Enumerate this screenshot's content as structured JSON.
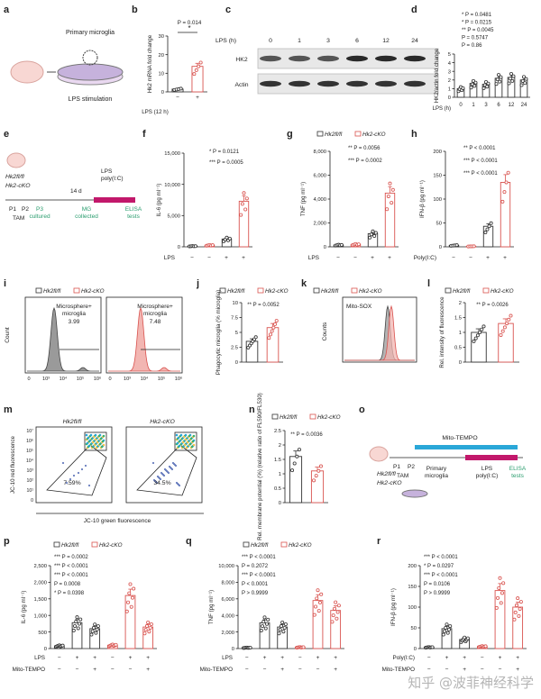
{
  "colors": {
    "wt": "#333333",
    "ko": "#d9534f",
    "ko_fill": "#f2b6b2",
    "green": "#2a9d6e",
    "magenta": "#c2186b",
    "cyan": "#2aa7d8",
    "gray_fill": "#9a9a9a"
  },
  "panel_letters": [
    "a",
    "b",
    "c",
    "d",
    "e",
    "f",
    "g",
    "h",
    "i",
    "j",
    "k",
    "l",
    "m",
    "n",
    "o",
    "p",
    "q",
    "r"
  ],
  "a": {
    "title": "Primary microglia",
    "caption": "LPS stimulation"
  },
  "b": {
    "p": "P = 0.014",
    "star": "*"
  },
  "c": {
    "lps": "LPS (h)",
    "times": [
      "0",
      "1",
      "3",
      "6",
      "12",
      "24"
    ],
    "bands": [
      "HK2",
      "Actin"
    ]
  },
  "d": {
    "p_rows": [
      "* P = 0.0481",
      "* P = 0.0215",
      "** P = 0.0045",
      "P = 0.5747",
      "P = 0.86"
    ]
  },
  "e": {
    "genotypes_top": "Hk2fl/fl",
    "genotypes_bottom": "Hk2-cKO",
    "ticks": [
      "P1",
      "P2"
    ],
    "tam": "TAM",
    "gap": "14 d",
    "lps": "LPS",
    "polyic": "poly(I:C)",
    "steps": [
      "P3 cultured",
      "MG collected",
      "ELISA tests"
    ]
  },
  "f": {
    "p": [
      "* P = 0.0121",
      "*** P = 0.0005"
    ]
  },
  "g": {
    "legend": [
      "Hk2fl/fl",
      "Hk2-cKO"
    ],
    "p": [
      "** P = 0.0056",
      "*** P = 0.0002"
    ]
  },
  "h": {
    "p": [
      "** P < 0.0001",
      "*** P < 0.0001",
      "*** P < 0.0001"
    ]
  },
  "i": {
    "legend": [
      "Hk2fl/fl",
      "Hk2-cKO"
    ],
    "gate": "Microsphere+ microglia",
    "values": [
      "3.99",
      "7.48"
    ],
    "ylabel": "Count",
    "xticks": [
      "0",
      "10³",
      "10⁴",
      "10⁵",
      "10⁶"
    ]
  },
  "j": {
    "legend": [
      "Hk2fl/fl",
      "Hk2-cKO"
    ],
    "p": "** P = 0.0052"
  },
  "k": {
    "legend": [
      "Hk2fl/fl",
      "Hk2-cKO"
    ],
    "title": "Mito-SOX",
    "ylabel": "Counts"
  },
  "l": {
    "legend": [
      "Hk2fl/fl",
      "Hk2-cKO"
    ],
    "p": "** P = 0.0026"
  },
  "m": {
    "titles": [
      "Hk2fl/fl",
      "Hk2-cKO"
    ],
    "pct": [
      "7.59%",
      "34.5%"
    ],
    "ylabel": "JC-10 red fluorescence",
    "xlabel": "JC-10 green fluorescence",
    "yticks": [
      "10⁷",
      "10⁶",
      "10⁵",
      "10⁴",
      "10³",
      "10²",
      "10¹",
      "0"
    ]
  },
  "n": {
    "legend": [
      "Hk2fl/fl",
      "Hk2-cKO"
    ],
    "p": "** P = 0.0036"
  },
  "o": {
    "bar": "Mito-TEMPO",
    "ticks": [
      "P1",
      "P2"
    ],
    "tam": "TAM",
    "primary": "Primary microglia",
    "lps": "LPS",
    "polyic": "poly(I:C)",
    "elisa": "ELISA tests",
    "genotypes_top": "Hk2fl/fl",
    "genotypes_bottom": "Hk2-cKO"
  },
  "p": {
    "legend": [
      "Hk2fl/fl",
      "Hk2-cKO"
    ],
    "p": [
      "*** P = 0.0002",
      "*** P < 0.0001",
      "*** P < 0.0001",
      "P = 0.0008",
      "* P = 0.0398"
    ],
    "rows": [
      "LPS",
      "Mito-TEMPO"
    ]
  },
  "q": {
    "p": [
      "*** P < 0.0001",
      "P = 0.2072",
      "*** P < 0.0001",
      "P < 0.0001",
      "P > 0.9999"
    ],
    "rows": [
      "LPS",
      "Mito-TEMPO"
    ]
  },
  "r": {
    "p": [
      "*** P < 0.0001",
      "* P = 0.0297",
      "*** P < 0.0001",
      "P = 0.0106",
      "P > 0.9999"
    ],
    "rows": [
      "Poly(I:C)",
      "Mito-TEMPO"
    ]
  },
  "watermark": "知乎 @波菲神经科学",
  "chart_data": [
    {
      "panel": "b",
      "type": "bar",
      "categories": [
        "−",
        "+"
      ],
      "values": [
        1.5,
        13.7
      ],
      "ylabel": "Hk2 mRNA fold change",
      "xlabel": "LPS (12 h)",
      "ylim": [
        0,
        30
      ],
      "yticks": [
        0,
        10,
        20,
        30
      ]
    },
    {
      "panel": "d",
      "type": "bar",
      "categories": [
        "0",
        "1",
        "3",
        "6",
        "12",
        "24"
      ],
      "values": [
        1.0,
        1.6,
        1.5,
        2.2,
        2.3,
        2.0
      ],
      "ylabel": "HK2/actin fold change",
      "xlabel": "LPS (h)",
      "ylim": [
        0,
        5
      ],
      "yticks": [
        0,
        1,
        2,
        3,
        4,
        5
      ]
    },
    {
      "panel": "f",
      "type": "bar",
      "categories": [
        "−",
        "−",
        "+",
        "+"
      ],
      "values": [
        100,
        250,
        1250,
        7300
      ],
      "ylabel": "IL-6 (pg ml⁻¹)",
      "xlabel": "LPS",
      "ylim": [
        0,
        15000
      ],
      "yticks": [
        0,
        5000,
        10000,
        15000
      ]
    },
    {
      "panel": "g",
      "type": "bar",
      "categories": [
        "−",
        "−",
        "+",
        "+"
      ],
      "values": [
        150,
        200,
        1100,
        4500
      ],
      "ylabel": "TNF (pg ml⁻¹)",
      "xlabel": "LPS",
      "ylim": [
        0,
        8000
      ],
      "yticks": [
        0,
        2000,
        4000,
        6000,
        8000
      ]
    },
    {
      "panel": "h",
      "type": "bar",
      "categories": [
        "−",
        "−",
        "+",
        "+"
      ],
      "values": [
        3,
        1,
        43,
        135
      ],
      "ylabel": "IFN-β (pg ml⁻¹)",
      "xlabel": "Poly(I:C)",
      "ylim": [
        0,
        200
      ],
      "yticks": [
        0,
        50,
        100,
        150,
        200
      ]
    },
    {
      "panel": "j",
      "type": "bar",
      "categories": [
        "Hk2fl/fl",
        "Hk2-cKO"
      ],
      "values": [
        3.5,
        5.8
      ],
      "ylabel": "Phagocytic microglia (% microglia)",
      "ylim": [
        0,
        10
      ],
      "yticks": [
        0,
        2.5,
        5,
        7.5,
        10
      ]
    },
    {
      "panel": "l",
      "type": "bar",
      "categories": [
        "Hk2fl/fl",
        "Hk2-cKO"
      ],
      "values": [
        1.0,
        1.3
      ],
      "ylabel": "Rel. intensity of fluorescence",
      "ylim": [
        0,
        2
      ],
      "yticks": [
        0,
        0.5,
        1.0,
        1.5,
        2.0
      ]
    },
    {
      "panel": "n",
      "type": "bar",
      "categories": [
        "Hk2fl/fl",
        "Hk2-cKO"
      ],
      "values": [
        1.6,
        1.1
      ],
      "ylabel": "Rel. membrane potential (%) (relative ratio of FL590/FL530)",
      "ylim": [
        0,
        2.5
      ],
      "yticks": [
        0,
        0.5,
        1.0,
        1.5,
        2.0,
        2.5
      ]
    },
    {
      "panel": "p",
      "type": "bar",
      "categories": [
        "−/−",
        "+/−",
        "+/+",
        "−/−",
        "+/−",
        "+/+"
      ],
      "values": [
        80,
        780,
        600,
        100,
        1600,
        650
      ],
      "ylabel": "IL-6 (pg ml⁻¹)",
      "ylim": [
        0,
        2500
      ],
      "yticks": [
        0,
        500,
        1000,
        1500,
        2000,
        2500
      ]
    },
    {
      "panel": "q",
      "type": "bar",
      "categories": [
        "−/−",
        "+/−",
        "+/+",
        "−/−",
        "+/−",
        "+/+"
      ],
      "values": [
        100,
        3100,
        2600,
        150,
        5800,
        4600
      ],
      "ylabel": "TNF (pg ml⁻¹)",
      "ylim": [
        0,
        10000
      ],
      "yticks": [
        0,
        2000,
        4000,
        6000,
        8000,
        10000
      ]
    },
    {
      "panel": "r",
      "type": "bar",
      "categories": [
        "−/−",
        "+/−",
        "+/+",
        "−/−",
        "+/−",
        "+/+"
      ],
      "values": [
        3,
        48,
        22,
        5,
        140,
        100
      ],
      "ylabel": "IFN-β (pg ml⁻¹)",
      "ylim": [
        0,
        200
      ],
      "yticks": [
        0,
        50,
        100,
        150,
        200
      ]
    }
  ]
}
